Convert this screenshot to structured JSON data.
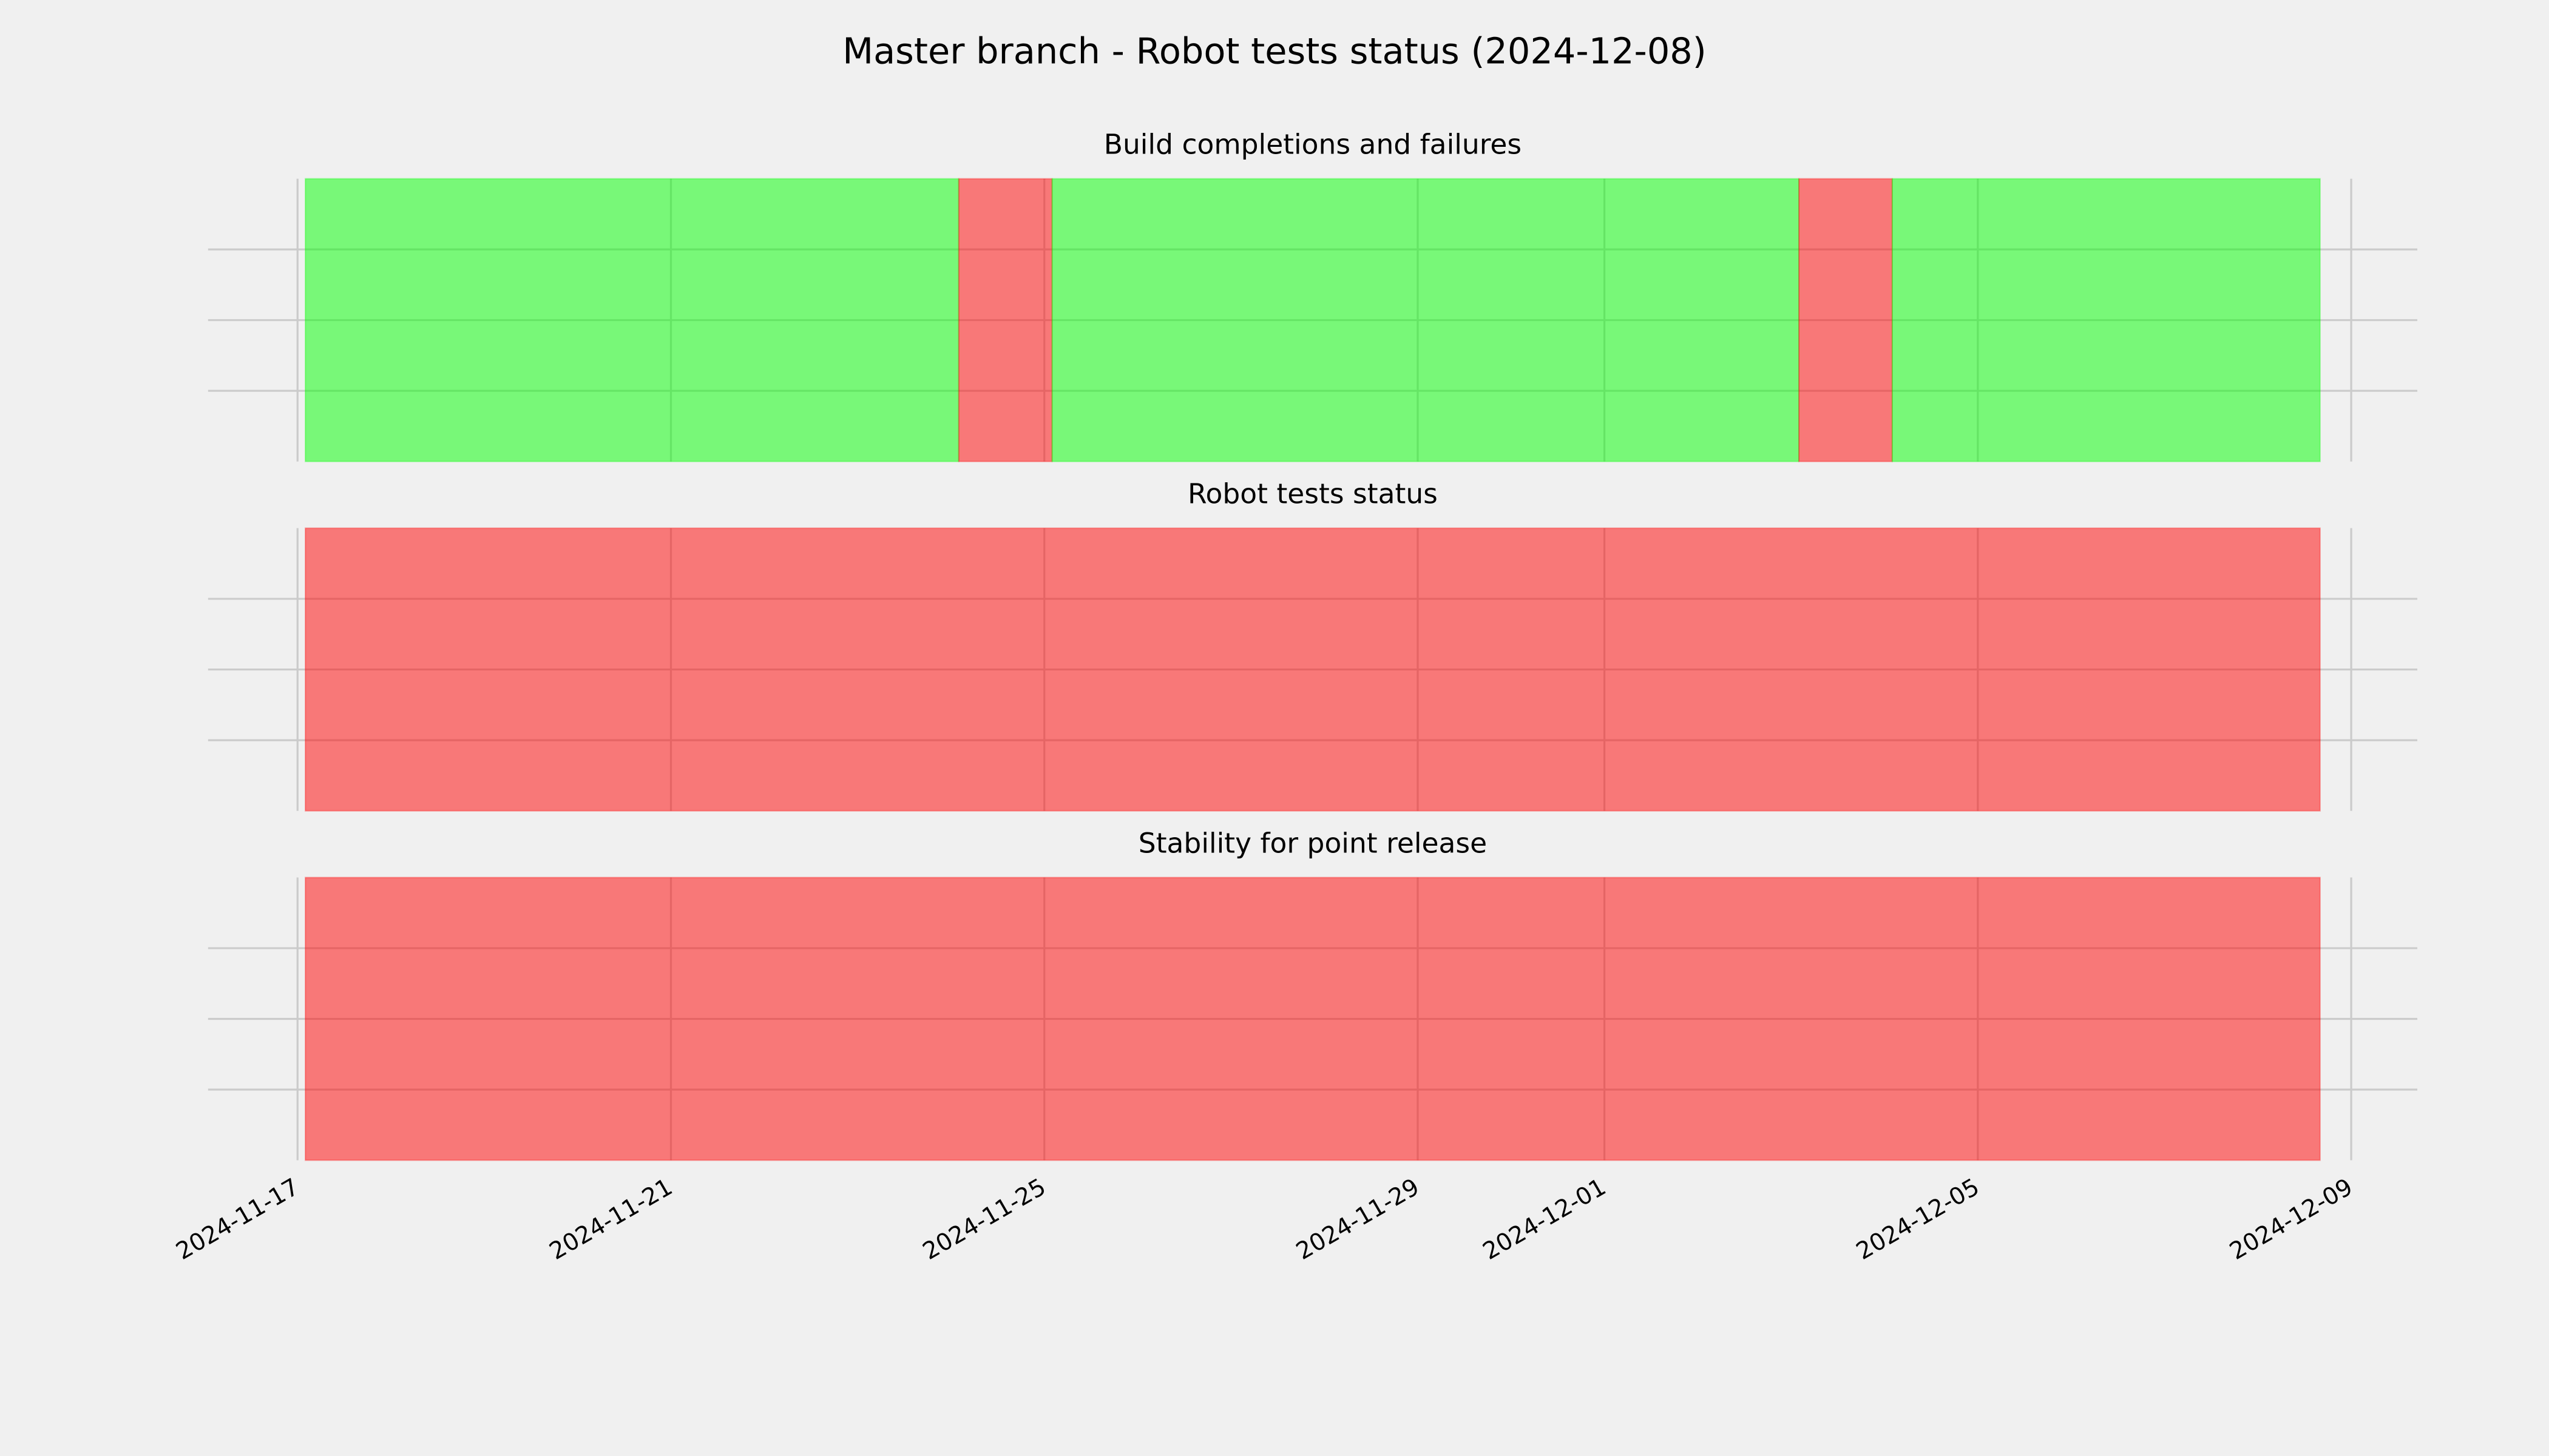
{
  "title": "Master branch - Robot tests status (2024-12-08)",
  "chart_data": [
    {
      "type": "timeline",
      "title": "Build completions and failures",
      "xlim": [
        "2024-11-16 01:00",
        "2024-12-09 17:00"
      ],
      "xticks": [
        "2024-11-17",
        "2024-11-21",
        "2024-11-25",
        "2024-11-29",
        "2024-12-01",
        "2024-12-05",
        "2024-12-09"
      ],
      "ylim": [
        0,
        1
      ],
      "yticks": [
        0.25,
        0.5,
        0.75
      ],
      "grid": true,
      "alpha": 0.5,
      "spans": [
        {
          "start": "2024-11-17 02:00",
          "end": "2024-11-24 02:00",
          "color": "#00ff00"
        },
        {
          "start": "2024-11-24 02:00",
          "end": "2024-11-25 02:00",
          "color": "#ff0000"
        },
        {
          "start": "2024-11-25 02:00",
          "end": "2024-12-03 02:00",
          "color": "#00ff00"
        },
        {
          "start": "2024-12-03 02:00",
          "end": "2024-12-04 02:00",
          "color": "#ff0000"
        },
        {
          "start": "2024-12-04 02:00",
          "end": "2024-12-08 16:00",
          "color": "#00ff00"
        }
      ]
    },
    {
      "type": "timeline",
      "title": "Robot tests status",
      "xlim": [
        "2024-11-16 01:00",
        "2024-12-09 17:00"
      ],
      "xticks": [
        "2024-11-17",
        "2024-11-21",
        "2024-11-25",
        "2024-11-29",
        "2024-12-01",
        "2024-12-05",
        "2024-12-09"
      ],
      "ylim": [
        0,
        1
      ],
      "yticks": [
        0.25,
        0.5,
        0.75
      ],
      "grid": true,
      "alpha": 0.5,
      "spans": [
        {
          "start": "2024-11-17 02:00",
          "end": "2024-12-08 16:00",
          "color": "#ff0000"
        }
      ]
    },
    {
      "type": "timeline",
      "title": "Stability for point release",
      "xlim": [
        "2024-11-16 01:00",
        "2024-12-09 17:00"
      ],
      "xticks": [
        "2024-11-17",
        "2024-11-21",
        "2024-11-25",
        "2024-11-29",
        "2024-12-01",
        "2024-12-05",
        "2024-12-09"
      ],
      "ylim": [
        0,
        1
      ],
      "yticks": [
        0.25,
        0.5,
        0.75
      ],
      "grid": true,
      "alpha": 0.5,
      "spans": [
        {
          "start": "2024-11-17 02:00",
          "end": "2024-12-08 16:00",
          "color": "#ff0000"
        }
      ]
    }
  ]
}
